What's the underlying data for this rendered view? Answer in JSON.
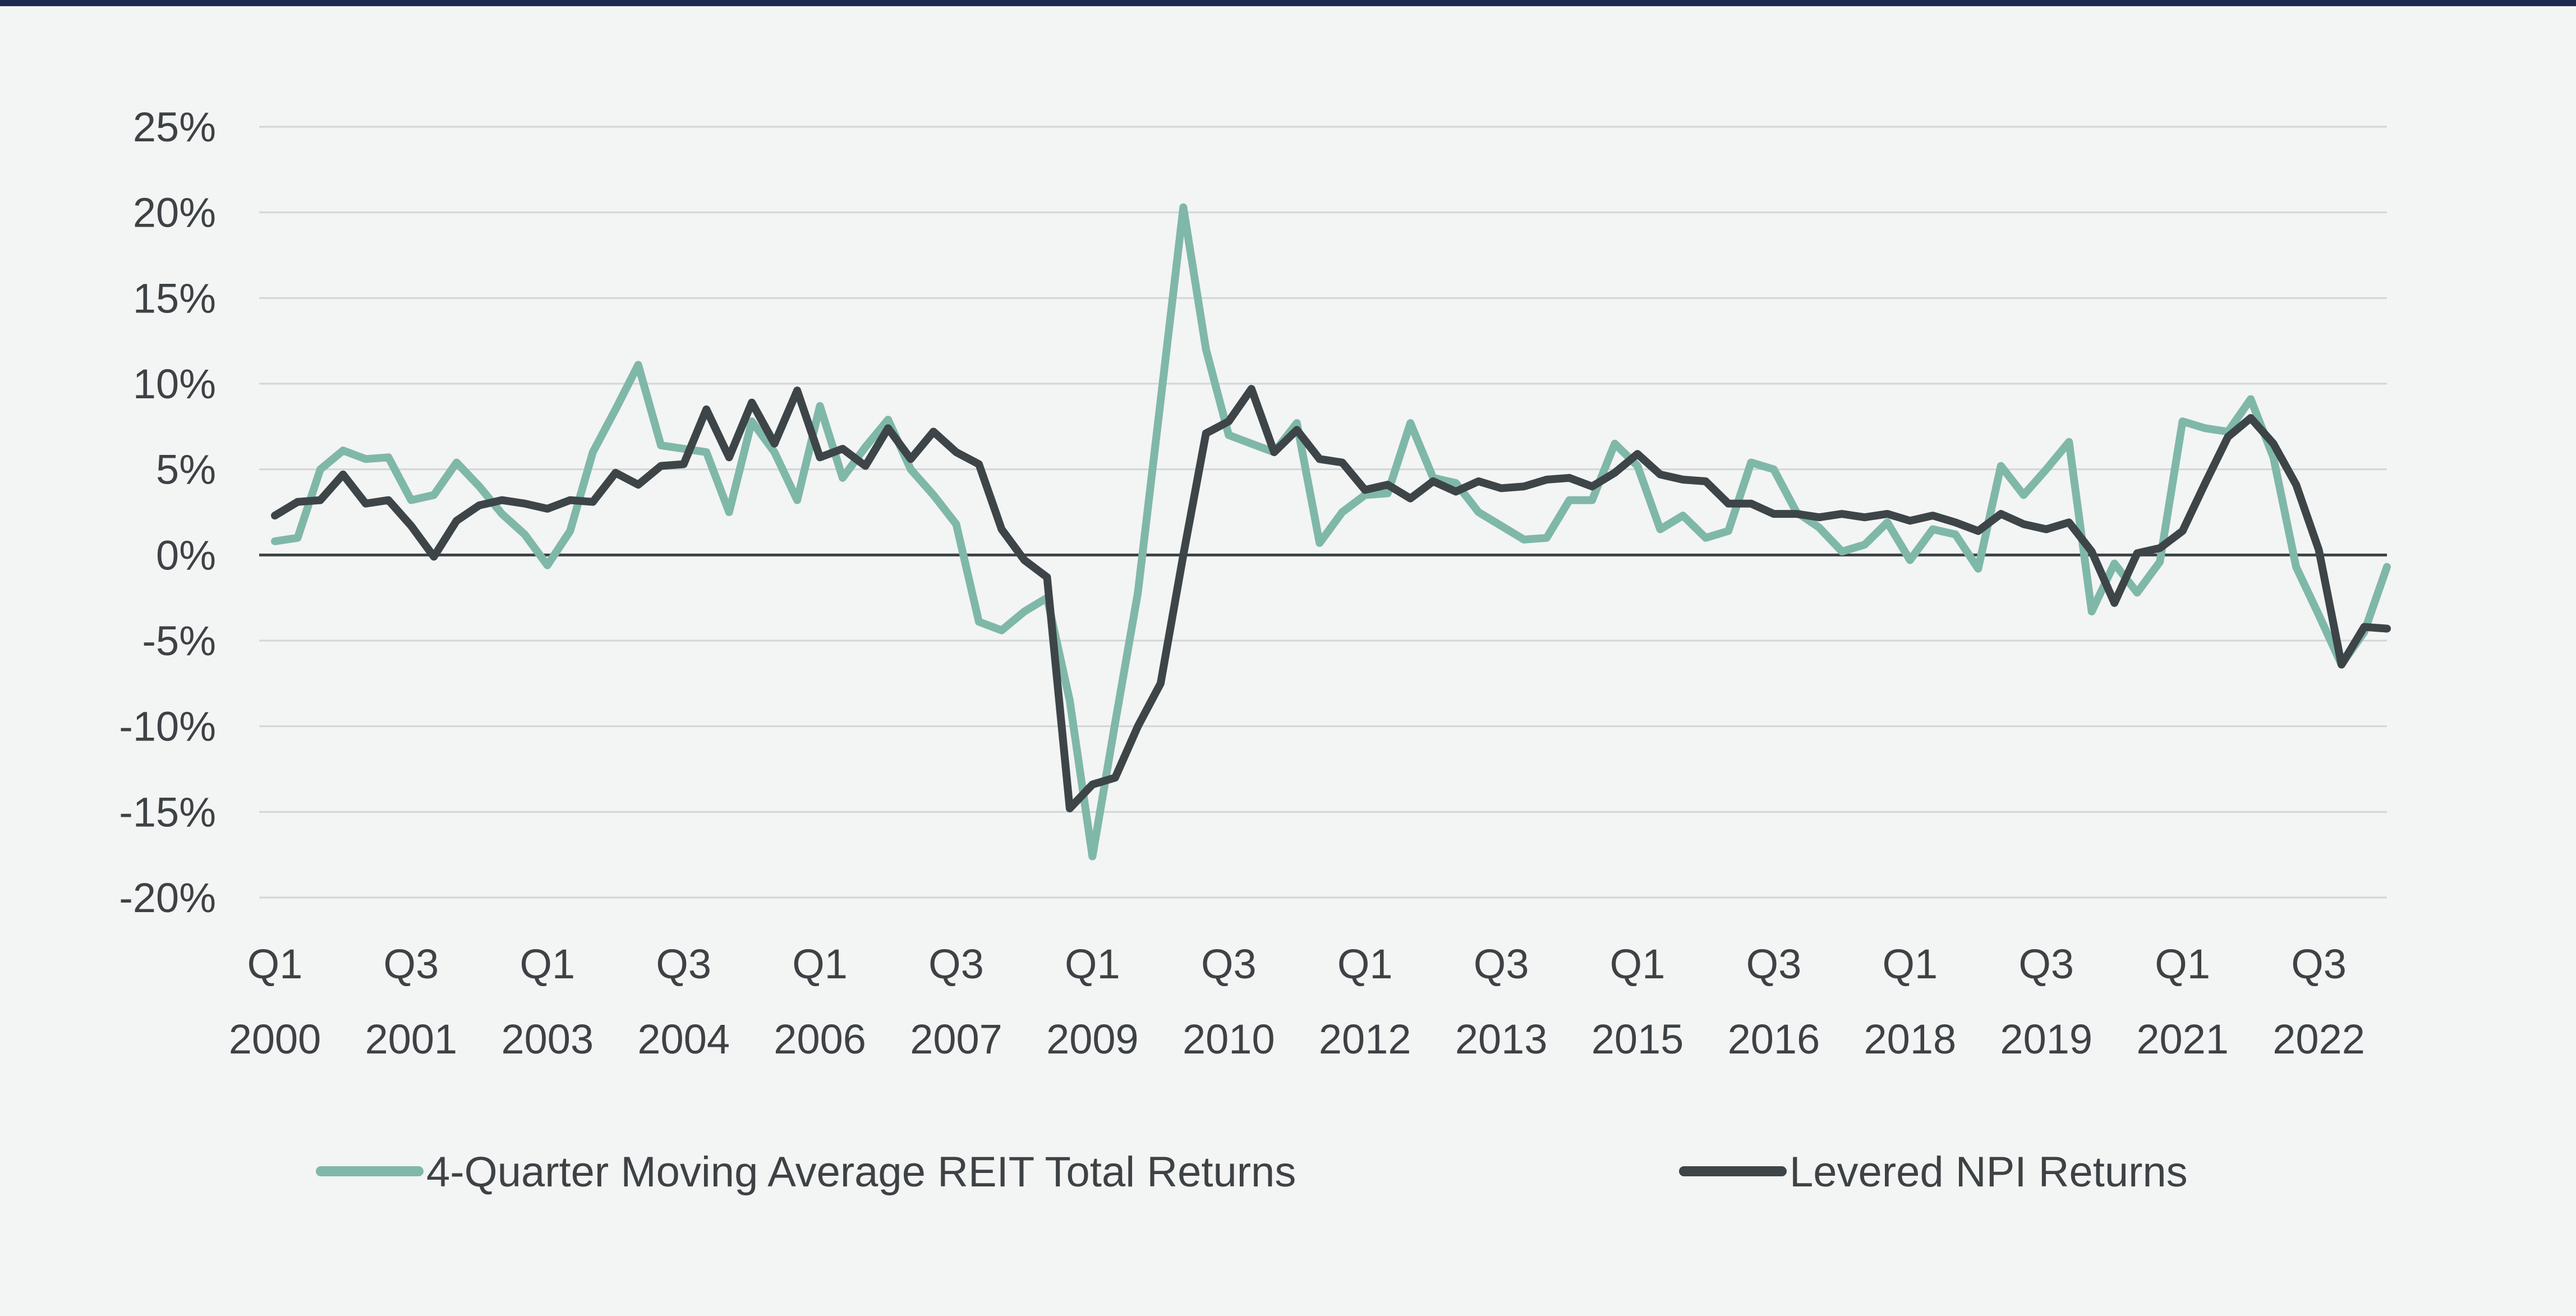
{
  "chart_data": {
    "type": "line",
    "title": "",
    "xlabel": "",
    "ylabel": "",
    "ylim": [
      -20,
      25
    ],
    "y_ticks": [
      25,
      20,
      15,
      10,
      5,
      0,
      -5,
      -10,
      -15,
      -20
    ],
    "y_tick_labels": [
      "25%",
      "20%",
      "15%",
      "10%",
      "5%",
      "0%",
      "-5%",
      "-10%",
      "-15%",
      "-20%"
    ],
    "x_tick_labels": [
      {
        "line1": "Q1",
        "line2": "2000",
        "index": 0
      },
      {
        "line1": "Q3",
        "line2": "2001",
        "index": 6
      },
      {
        "line1": "Q1",
        "line2": "2003",
        "index": 12
      },
      {
        "line1": "Q3",
        "line2": "2004",
        "index": 18
      },
      {
        "line1": "Q1",
        "line2": "2006",
        "index": 24
      },
      {
        "line1": "Q3",
        "line2": "2007",
        "index": 30
      },
      {
        "line1": "Q1",
        "line2": "2009",
        "index": 36
      },
      {
        "line1": "Q3",
        "line2": "2010",
        "index": 42
      },
      {
        "line1": "Q1",
        "line2": "2012",
        "index": 48
      },
      {
        "line1": "Q3",
        "line2": "2013",
        "index": 54
      },
      {
        "line1": "Q1",
        "line2": "2015",
        "index": 60
      },
      {
        "line1": "Q3",
        "line2": "2016",
        "index": 66
      },
      {
        "line1": "Q1",
        "line2": "2018",
        "index": 72
      },
      {
        "line1": "Q3",
        "line2": "2019",
        "index": 78
      },
      {
        "line1": "Q1",
        "line2": "2021",
        "index": 84
      },
      {
        "line1": "Q3",
        "line2": "2022",
        "index": 90
      }
    ],
    "n_points": 94,
    "series": [
      {
        "name": "4-Quarter Moving Average REIT Total Returns",
        "color": "#7fb8a8",
        "values": [
          0.8,
          1.0,
          5.0,
          6.1,
          5.6,
          5.7,
          3.2,
          3.5,
          5.4,
          4.0,
          2.4,
          1.2,
          -0.6,
          1.4,
          6.0,
          8.5,
          11.1,
          6.4,
          6.2,
          6.0,
          2.5,
          7.8,
          6.0,
          3.2,
          8.7,
          4.5,
          6.3,
          7.9,
          5.0,
          3.5,
          1.8,
          -3.9,
          -4.4,
          -3.3,
          -2.5,
          -8.5,
          -17.6,
          -9.8,
          -2.2,
          9.0,
          20.3,
          12.0,
          7.0,
          6.5,
          6.0,
          7.7,
          0.7,
          2.5,
          3.5,
          3.6,
          7.7,
          4.5,
          4.2,
          2.5,
          1.7,
          0.9,
          1.0,
          3.2,
          3.2,
          6.5,
          5.2,
          1.5,
          2.3,
          1.0,
          1.4,
          5.4,
          5.0,
          2.5,
          1.6,
          0.2,
          0.6,
          1.9,
          -0.3,
          1.5,
          1.2,
          -0.8,
          5.2,
          3.5,
          5.0,
          6.6,
          -3.3,
          -0.5,
          -2.2,
          -0.4,
          7.8,
          7.4,
          7.2,
          9.1,
          5.7,
          -0.7,
          -3.5,
          -6.4,
          -4.5,
          -0.7
        ]
      },
      {
        "name": "Levered NPI Returns",
        "color": "#3d4548",
        "values": [
          2.3,
          3.1,
          3.2,
          4.7,
          3.0,
          3.2,
          1.7,
          -0.1,
          2.0,
          2.9,
          3.2,
          3.0,
          2.7,
          3.2,
          3.1,
          4.8,
          4.1,
          5.2,
          5.3,
          8.5,
          5.7,
          8.9,
          6.5,
          9.6,
          5.7,
          6.2,
          5.2,
          7.4,
          5.6,
          7.2,
          6.0,
          5.3,
          1.5,
          -0.3,
          -1.3,
          -14.8,
          -13.4,
          -13.0,
          -10.0,
          -7.5,
          0.0,
          7.1,
          7.8,
          9.7,
          6.0,
          7.3,
          5.6,
          5.4,
          3.8,
          4.1,
          3.3,
          4.3,
          3.7,
          4.3,
          3.9,
          4.0,
          4.4,
          4.5,
          4.0,
          4.8,
          5.9,
          4.7,
          4.4,
          4.3,
          3.0,
          3.0,
          2.4,
          2.4,
          2.2,
          2.4,
          2.2,
          2.4,
          2.0,
          2.3,
          1.9,
          1.4,
          2.4,
          1.8,
          1.5,
          1.9,
          0.2,
          -2.8,
          0.1,
          0.4,
          1.4,
          4.2,
          6.9,
          8.0,
          6.5,
          4.1,
          0.3,
          -6.4,
          -4.2,
          -4.3
        ]
      }
    ],
    "legend_position": "bottom",
    "grid": true
  }
}
